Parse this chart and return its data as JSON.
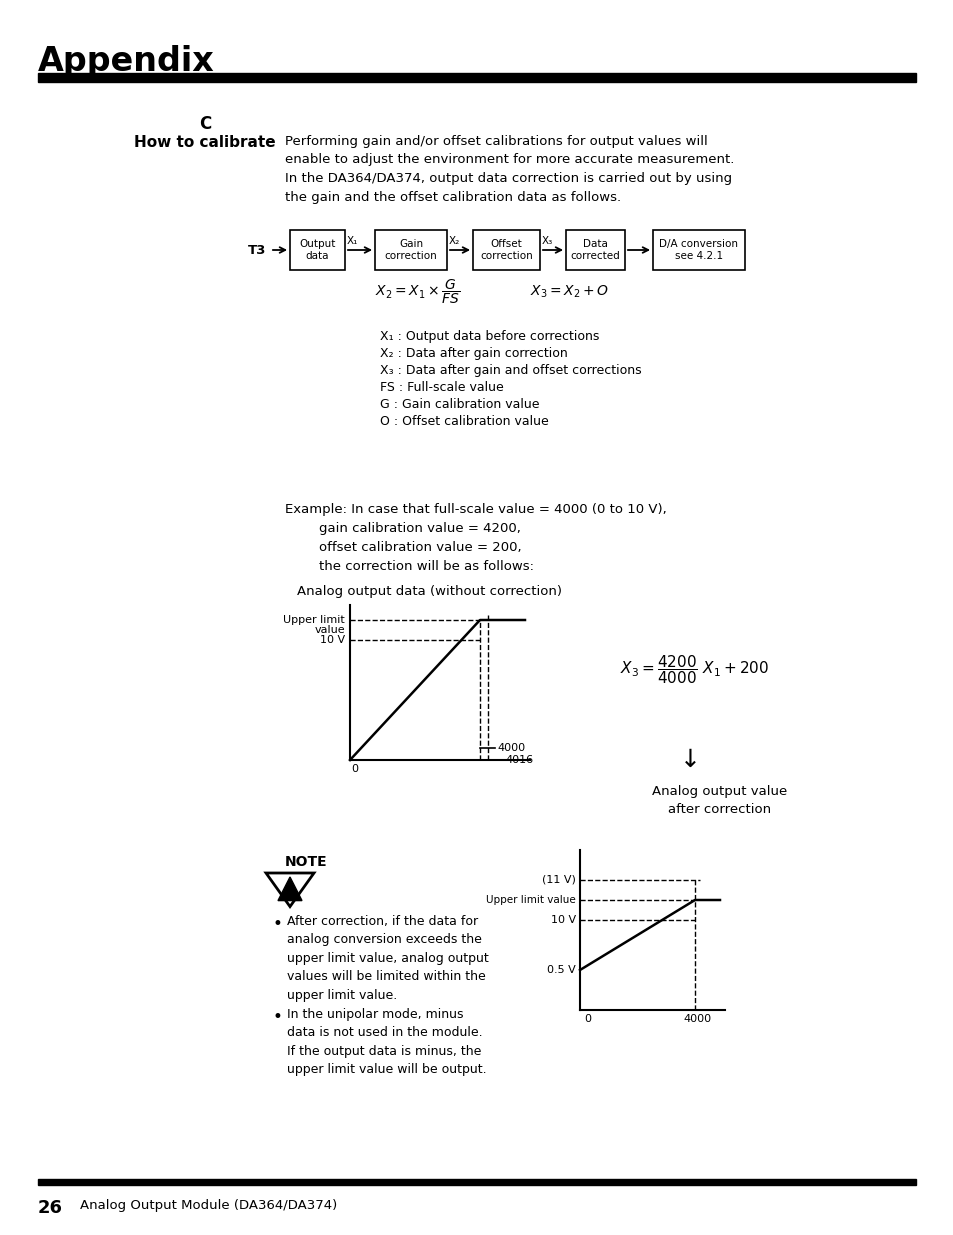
{
  "bg_color": "#ffffff",
  "title_text": "Appendix",
  "section_c": "C",
  "section_label": "How to calibrate",
  "body_text_1": "Performing gain and/or offset calibrations for output values will\nenable to adjust the environment for more accurate measurement.\nIn the DA364/DA374, output data correction is carried out by using\nthe gain and the offset calibration data as follows.",
  "t3_label": "T3",
  "block_labels": [
    "Output\ndata",
    "Gain\ncorrection",
    "Offset\ncorrection",
    "Data\ncorrected",
    "D/A conversion\nsee 4.2.1"
  ],
  "conn_labels": [
    "X₁",
    "X₂",
    "X₃"
  ],
  "legend_lines": [
    "X₁ : Output data before corrections",
    "X₂ : Data after gain correction",
    "X₃ : Data after gain and offset corrections",
    "FS : Full-scale value",
    "G : Gain calibration value",
    "O : Offset calibration value"
  ],
  "example_text_line1": "Example: In case that full-scale value = 4000 (0 to 10 V),",
  "example_text_line2": "        gain calibration value = 4200,",
  "example_text_line3": "        offset calibration value = 200,",
  "example_text_line4": "        the correction will be as follows:",
  "graph1_title": "Analog output data (without correction)",
  "graph1_upper_label1": "Upper limit",
  "graph1_upper_label2": "value",
  "graph1_10v": "10 V",
  "graph1_x0": "0",
  "graph1_x4016": "4016",
  "graph1_x4000": "4000",
  "down_arrow": "↓",
  "graph2_title1": "Analog output value",
  "graph2_title2": "after correction",
  "graph2_11v": "(11 V)",
  "graph2_upper": "Upper limit value",
  "graph2_10v": "10 V",
  "graph2_05v": "0.5 V",
  "graph2_x0": "0",
  "graph2_x4000": "4000",
  "note_title": "NOTE",
  "note_bullet1": "After correction, if the data for\nanalog conversion exceeds the\nupper limit value, analog output\nvalues will be limited within the\nupper limit value.",
  "note_bullet2": "In the unipolar mode, minus\ndata is not used in the module.\nIf the output data is minus, the\nupper limit value will be output.",
  "footer_num": "26",
  "footer_text": "Analog Output Module (DA364/DA374)"
}
